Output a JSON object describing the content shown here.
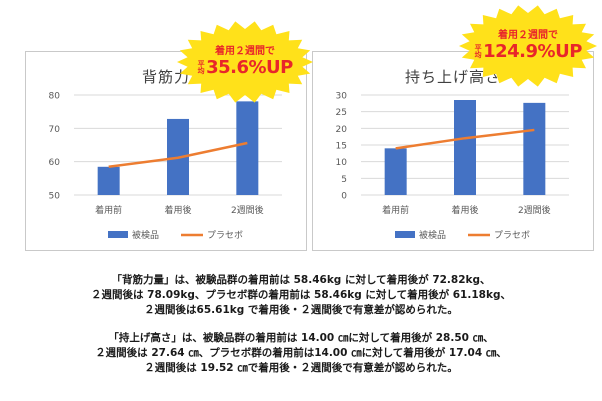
{
  "charts": [
    {
      "title": "背筋力",
      "burst": {
        "line1": "着用２週間で",
        "avg": "平均",
        "value": "35.6%UP"
      },
      "legend": [
        "被検品",
        "プラセボ"
      ]
    },
    {
      "title": "持ち上げ高さ",
      "burst": {
        "line1": "着用２週間で",
        "avg": "平均",
        "value": "124.9%UP"
      },
      "legend": [
        "被検品",
        "プラセボ"
      ]
    }
  ],
  "colors": {
    "bar": "#4472c4",
    "line": "#ed7d31",
    "burst": "#ffe11a",
    "burst_text": "#e8262a"
  },
  "chart_data": [
    {
      "type": "bar",
      "title": "背筋力",
      "categories": [
        "着用前",
        "着用後",
        "2週間後"
      ],
      "series": [
        {
          "name": "被検品",
          "type": "bar",
          "values": [
            58.46,
            72.82,
            78.09
          ]
        },
        {
          "name": "プラセボ",
          "type": "line",
          "values": [
            58.46,
            61.18,
            65.61
          ]
        }
      ],
      "ylim": [
        50,
        80
      ],
      "yticks": [
        50,
        60,
        70,
        80
      ],
      "grid": true,
      "legend": "bottom"
    },
    {
      "type": "bar",
      "title": "持ち上げ高さ",
      "categories": [
        "着用前",
        "着用後",
        "2週間後"
      ],
      "series": [
        {
          "name": "被検品",
          "type": "bar",
          "values": [
            14.0,
            28.5,
            27.64
          ]
        },
        {
          "name": "プラセボ",
          "type": "line",
          "values": [
            14.0,
            17.04,
            19.52
          ]
        }
      ],
      "ylim": [
        0,
        30
      ],
      "yticks": [
        0,
        5,
        10,
        15,
        20,
        25,
        30
      ],
      "grid": true,
      "legend": "bottom"
    }
  ],
  "description": {
    "p1": [
      "「背筋力量」は、被験品群の着用前は 58.46kg に対して着用後が 72.82kg、",
      "２週間後は 78.09kg、プラセボ群の着用前は 58.46kg に対して着用後が 61.18kg、",
      "２週間後は65.61kg で着用後・２週間後で有意差が認められた。"
    ],
    "p2": [
      "「持上げ高さ」は、被験品群の着用前は 14.00 ㎝に対して着用後が 28.50 ㎝、",
      "２週間後は 27.64 ㎝、プラセボ群の着用前は14.00 ㎝に対して着用後が 17.04 ㎝、",
      "２週間後は 19.52 ㎝で着用後・２週間後で有意差が認められた。"
    ]
  }
}
